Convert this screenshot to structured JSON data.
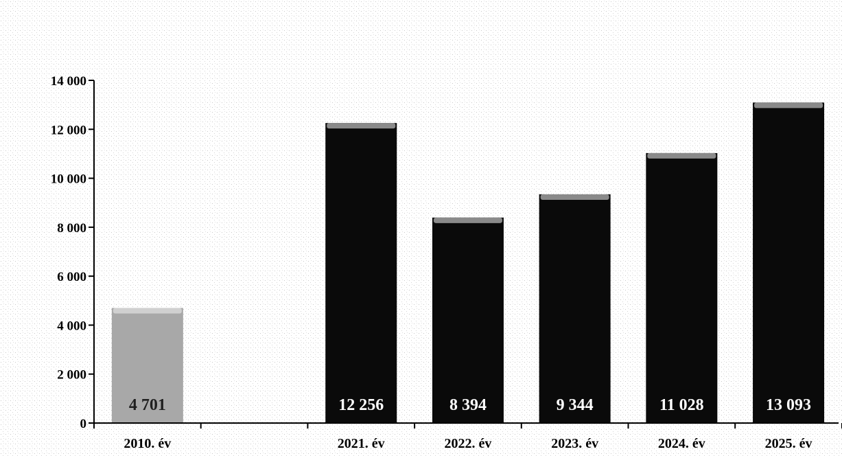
{
  "chart_data": {
    "type": "bar",
    "title": "",
    "xlabel": "",
    "ylabel": "",
    "categories": [
      "2010. év",
      "",
      "2021. év",
      "2022. év",
      "2023. év",
      "2024. év",
      "2025. év"
    ],
    "values": [
      4701,
      null,
      12256,
      8394,
      9344,
      11028,
      13093
    ],
    "data_labels": [
      "4 701",
      "",
      "12 256",
      "8 394",
      "9 344",
      "11 028",
      "13 093"
    ],
    "yticks": [
      0,
      2000,
      4000,
      6000,
      8000,
      10000,
      12000,
      14000
    ],
    "ytick_labels": [
      "0",
      "2 000",
      "4 000",
      "6 000",
      "8 000",
      "10 000",
      "12 000",
      "14 000"
    ],
    "ylim": [
      0,
      14000
    ],
    "grid": false,
    "legend": "none",
    "colors": {
      "first_bar": "#a8a8a8",
      "first_bar_top": "#d0d0d0",
      "bars": "#0a0a0a",
      "bars_top": "#8a8a8a",
      "first_label": "#202020",
      "label": "#ffffff",
      "axis": "#000000"
    }
  }
}
